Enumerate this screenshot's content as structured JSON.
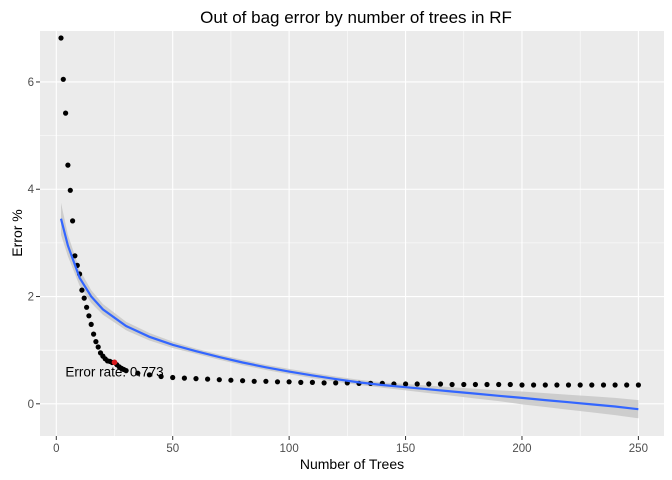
{
  "chart_data": {
    "type": "scatter",
    "title": "Out of bag error by number of trees in RF",
    "xlabel": "Number of Trees",
    "ylabel": "Error %",
    "xlim": [
      -7,
      261
    ],
    "ylim": [
      -0.6,
      6.95
    ],
    "x_ticks": [
      0,
      50,
      100,
      150,
      200,
      250
    ],
    "y_ticks": [
      0,
      2,
      4,
      6
    ],
    "x_tick_labels": [
      "0",
      "50",
      "100",
      "150",
      "200",
      "250"
    ],
    "y_tick_labels": [
      "0",
      "2",
      "4",
      "6"
    ],
    "grid": true,
    "legend": "none",
    "points": {
      "x": [
        2,
        3,
        4,
        5,
        6,
        7,
        8,
        9,
        10,
        11,
        12,
        13,
        14,
        15,
        16,
        17,
        18,
        19,
        20,
        21,
        22,
        23,
        24,
        25,
        26,
        27,
        28,
        29,
        30,
        35,
        40,
        45,
        50,
        55,
        60,
        65,
        70,
        75,
        80,
        85,
        90,
        95,
        100,
        105,
        110,
        115,
        120,
        125,
        130,
        135,
        140,
        145,
        150,
        155,
        160,
        165,
        170,
        175,
        180,
        185,
        190,
        195,
        200,
        205,
        210,
        215,
        220,
        225,
        230,
        235,
        240,
        245,
        250
      ],
      "y": [
        6.82,
        6.05,
        5.42,
        4.45,
        3.98,
        3.41,
        2.76,
        2.58,
        2.42,
        2.12,
        1.97,
        1.8,
        1.64,
        1.48,
        1.3,
        1.16,
        1.06,
        0.95,
        0.89,
        0.84,
        0.8,
        0.79,
        0.77,
        0.773,
        0.73,
        0.69,
        0.66,
        0.64,
        0.62,
        0.57,
        0.54,
        0.51,
        0.49,
        0.48,
        0.47,
        0.46,
        0.45,
        0.44,
        0.43,
        0.42,
        0.42,
        0.41,
        0.41,
        0.4,
        0.4,
        0.39,
        0.39,
        0.39,
        0.38,
        0.38,
        0.38,
        0.37,
        0.37,
        0.37,
        0.37,
        0.37,
        0.36,
        0.36,
        0.36,
        0.36,
        0.36,
        0.36,
        0.35,
        0.35,
        0.35,
        0.35,
        0.35,
        0.35,
        0.35,
        0.35,
        0.35,
        0.35,
        0.35
      ],
      "color": "#000000"
    },
    "highlight": {
      "x": 25,
      "y": 0.773,
      "color": "#d7191c"
    },
    "annotation": {
      "text": "Error rate: 0.773",
      "x": 25,
      "y": 0.6
    },
    "smooth": {
      "x": [
        2,
        5,
        10,
        15,
        20,
        30,
        40,
        50,
        60,
        70,
        80,
        90,
        100,
        110,
        120,
        130,
        140,
        150,
        160,
        170,
        180,
        190,
        200,
        210,
        220,
        230,
        240,
        250
      ],
      "y": [
        3.45,
        2.95,
        2.35,
        2.0,
        1.76,
        1.45,
        1.25,
        1.1,
        0.98,
        0.87,
        0.77,
        0.68,
        0.6,
        0.53,
        0.46,
        0.4,
        0.35,
        0.31,
        0.27,
        0.23,
        0.19,
        0.15,
        0.11,
        0.07,
        0.03,
        -0.01,
        -0.05,
        -0.1
      ],
      "se_upper": [
        3.75,
        3.15,
        2.5,
        2.12,
        1.86,
        1.53,
        1.32,
        1.16,
        1.03,
        0.92,
        0.82,
        0.73,
        0.65,
        0.58,
        0.51,
        0.45,
        0.4,
        0.37,
        0.34,
        0.31,
        0.28,
        0.25,
        0.23,
        0.2,
        0.17,
        0.14,
        0.11,
        0.07
      ],
      "se_lower": [
        3.15,
        2.75,
        2.2,
        1.88,
        1.66,
        1.37,
        1.18,
        1.04,
        0.93,
        0.82,
        0.72,
        0.63,
        0.55,
        0.48,
        0.41,
        0.35,
        0.3,
        0.25,
        0.2,
        0.15,
        0.1,
        0.05,
        -0.01,
        -0.06,
        -0.11,
        -0.16,
        -0.21,
        -0.27
      ],
      "line_color": "#3366ff",
      "band_color": "#c8c8c8"
    },
    "panel_background": "#ebebeb",
    "grid_color": "#ffffff"
  }
}
